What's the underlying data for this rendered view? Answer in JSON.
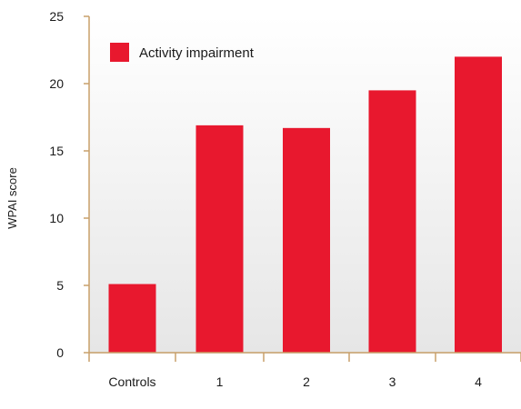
{
  "chart_data": {
    "type": "bar",
    "title": "",
    "xlabel": "",
    "ylabel": "WPAI score",
    "ylim": [
      0,
      25
    ],
    "yticks": [
      0,
      5,
      10,
      15,
      20,
      25
    ],
    "categories": [
      "Controls",
      "1",
      "2",
      "3",
      "4"
    ],
    "series": [
      {
        "name": "Activity impairment",
        "values": [
          5.1,
          16.9,
          16.7,
          19.5,
          22.0
        ],
        "color": "#e8182e"
      }
    ],
    "grid": false,
    "legend_position": "top-left",
    "background_gradient": [
      "#ffffff",
      "#e6e6e6"
    ],
    "axis_color": "#c9a06a"
  }
}
